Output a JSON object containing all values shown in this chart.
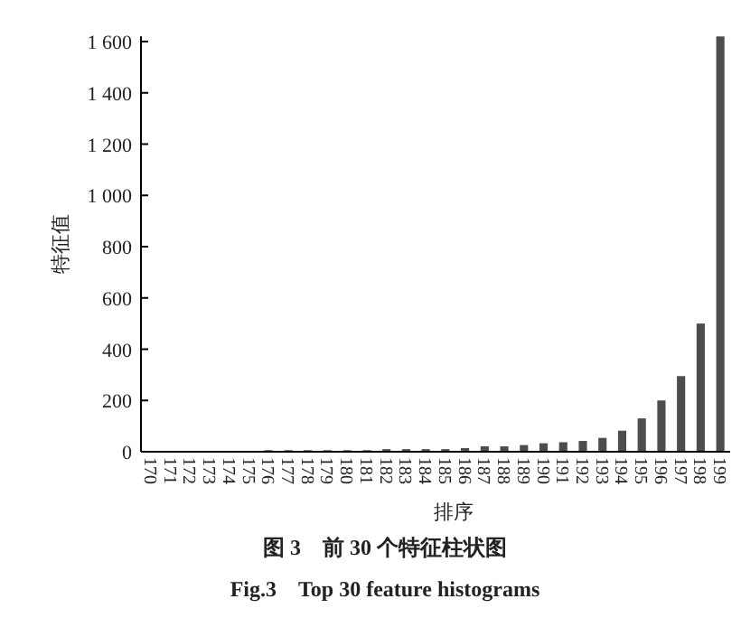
{
  "chart_data": {
    "type": "bar",
    "title": "图 3　前 30 个特征柱状图",
    "subtitle": "Fig.3　Top 30 feature histograms",
    "xlabel": "排序",
    "ylabel": "特征值",
    "categories": [
      "170",
      "171",
      "172",
      "173",
      "174",
      "175",
      "176",
      "177",
      "178",
      "179",
      "180",
      "181",
      "182",
      "183",
      "184",
      "185",
      "186",
      "187",
      "188",
      "189",
      "190",
      "191",
      "192",
      "193",
      "194",
      "195",
      "196",
      "197",
      "198",
      "199"
    ],
    "values": [
      2,
      2,
      2,
      2,
      2,
      2,
      6,
      6,
      6,
      6,
      6,
      6,
      10,
      10,
      10,
      10,
      14,
      21,
      21,
      26,
      33,
      37,
      42,
      54,
      82,
      130,
      200,
      295,
      500,
      1620
    ],
    "color": "#4d4d4d",
    "ylim": [
      0,
      1620
    ],
    "yticks": [
      0,
      200,
      400,
      600,
      800,
      {
        "value": 1000,
        "label": "1 000"
      },
      {
        "value": 1200,
        "label": "1 200"
      },
      {
        "value": 1400,
        "label": "1 400"
      },
      {
        "value": 1600,
        "label": "1 600"
      }
    ],
    "grid": false
  }
}
